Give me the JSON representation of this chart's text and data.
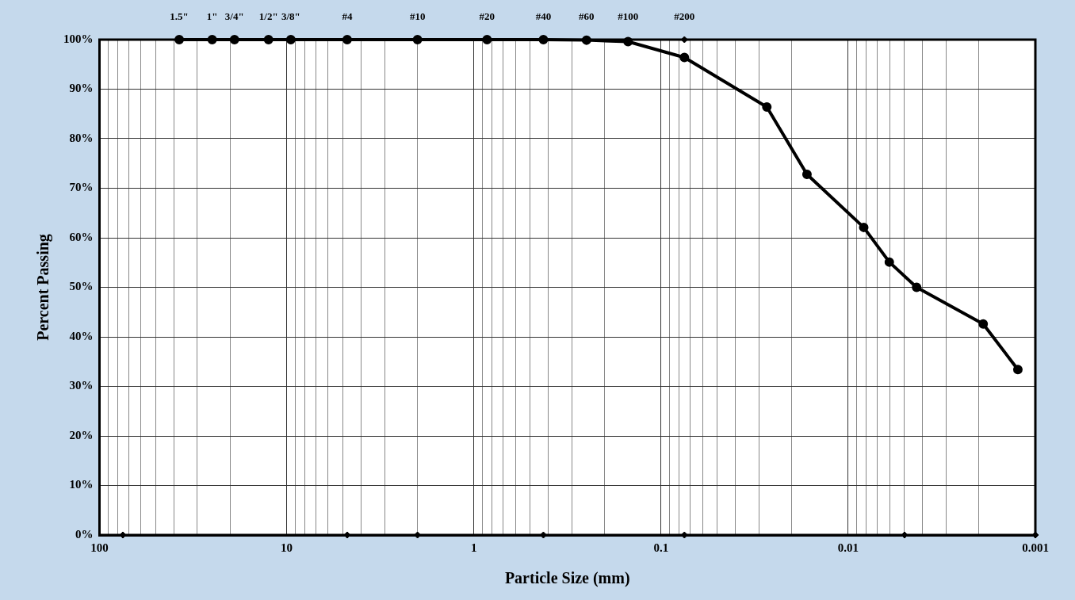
{
  "chart_data": {
    "type": "line",
    "xlabel": "Particle Size (mm)",
    "ylabel": "Percent Passing",
    "log": "x",
    "grid": true,
    "legend": false,
    "xlim": [
      100,
      0.001
    ],
    "ylim": [
      0,
      100
    ],
    "xticks": [
      100,
      {
        "value": 90,
        "label": null
      },
      {
        "value": 80,
        "label": null
      },
      {
        "value": 70,
        "label": null
      },
      {
        "value": 60,
        "label": null
      },
      {
        "value": 50,
        "label": null
      },
      {
        "value": 40,
        "label": null
      },
      {
        "value": 30,
        "label": null
      },
      {
        "value": 20,
        "label": null
      },
      10,
      {
        "value": 9,
        "label": null
      },
      {
        "value": 8,
        "label": null
      },
      {
        "value": 7,
        "label": null
      },
      {
        "value": 6,
        "label": null
      },
      {
        "value": 5,
        "label": null
      },
      {
        "value": 4,
        "label": null
      },
      {
        "value": 3,
        "label": null
      },
      {
        "value": 2,
        "label": null
      },
      1,
      {
        "value": 0.9,
        "label": null
      },
      {
        "value": 0.8,
        "label": null
      },
      {
        "value": 0.7,
        "label": null
      },
      {
        "value": 0.6,
        "label": null
      },
      {
        "value": 0.5,
        "label": null
      },
      {
        "value": 0.4,
        "label": null
      },
      {
        "value": 0.3,
        "label": null
      },
      {
        "value": 0.2,
        "label": null
      },
      0.1,
      {
        "value": 0.09,
        "label": null
      },
      {
        "value": 0.08,
        "label": null
      },
      {
        "value": 0.07,
        "label": null
      },
      {
        "value": 0.06,
        "label": null
      },
      {
        "value": 0.05,
        "label": null
      },
      {
        "value": 0.04,
        "label": null
      },
      {
        "value": 0.03,
        "label": null
      },
      {
        "value": 0.02,
        "label": null
      },
      0.01,
      {
        "value": 0.009,
        "label": null
      },
      {
        "value": 0.008,
        "label": null
      },
      {
        "value": 0.007,
        "label": null
      },
      {
        "value": 0.006,
        "label": null
      },
      {
        "value": 0.005,
        "label": null
      },
      {
        "value": 0.004,
        "label": null
      },
      {
        "value": 0.003,
        "label": null
      },
      {
        "value": 0.002,
        "label": null
      },
      0.001
    ],
    "annotations": [
      {
        "text": "1.5\"",
        "x": 37.5,
        "y": 100
      },
      {
        "text": "1\"",
        "x": 25,
        "y": 100
      },
      {
        "text": "3/4\"",
        "x": 19,
        "y": 100
      },
      {
        "text": "1/2\"",
        "x": 12.5,
        "y": 100
      },
      {
        "text": "3/8\"",
        "x": 9.5,
        "y": 100
      },
      {
        "text": "#4",
        "x": 4.75,
        "y": 100
      },
      {
        "text": "#10",
        "x": 2,
        "y": 100
      },
      {
        "text": "#20",
        "x": 0.85,
        "y": 100
      },
      {
        "text": "#40",
        "x": 0.425,
        "y": 100
      },
      {
        "text": "#60",
        "x": 0.25,
        "y": 100
      },
      {
        "text": "#100",
        "x": 0.15,
        "y": 100
      },
      {
        "text": "#200",
        "x": 0.075,
        "y": 100
      }
    ],
    "yticks": [
      {
        "value": 0,
        "label": "0%"
      },
      {
        "value": 10,
        "label": "10%"
      },
      {
        "value": 20,
        "label": "20%"
      },
      {
        "value": 30,
        "label": "30%"
      },
      {
        "value": 40,
        "label": "40%"
      },
      {
        "value": 50,
        "label": "50%"
      },
      {
        "value": 60,
        "label": "60%"
      },
      {
        "value": 70,
        "label": "70%"
      },
      {
        "value": 80,
        "label": "80%"
      },
      {
        "value": 90,
        "label": "90%"
      },
      {
        "value": 100,
        "label": "100%"
      }
    ],
    "series": [
      {
        "color": "#000000",
        "marker": "circle",
        "line_style": "solid",
        "x": [
          37.5,
          25,
          19,
          12.5,
          9.5,
          4.75,
          2,
          0.85,
          0.425,
          0.25,
          0.15,
          0.075,
          0.0272,
          0.0166,
          0.00826,
          0.00603,
          0.00431,
          0.0019,
          0.00124
        ],
        "values": [
          100,
          100,
          100,
          100,
          100,
          100,
          100,
          100,
          100,
          99.9,
          99.6,
          96.4,
          86.4,
          72.8,
          62.1,
          55.1,
          50.0,
          42.6,
          33.4
        ]
      },
      {
        "type": "scatter",
        "color": "#000000",
        "marker": "diamond",
        "x": [
          75,
          4.75,
          2,
          0.425,
          0.075,
          0.005,
          0.001,
          0.075
        ],
        "values": [
          0,
          0,
          0,
          0,
          0,
          0,
          0,
          100
        ]
      }
    ]
  }
}
